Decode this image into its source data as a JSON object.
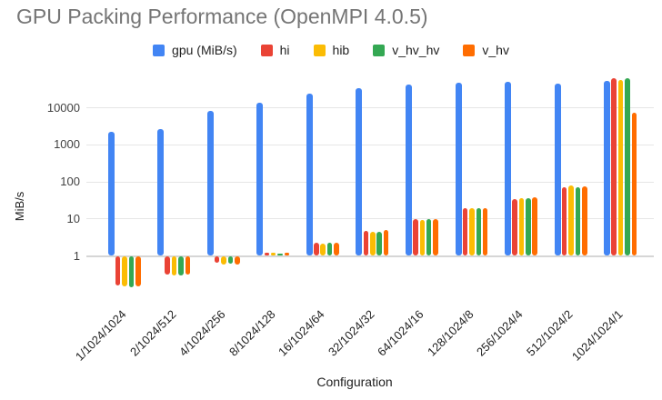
{
  "chart_data": {
    "type": "bar",
    "title": "GPU Packing Performance (OpenMPI 4.0.5)",
    "xlabel": "Configuration",
    "ylabel": "MiB/s",
    "y_scale": "log",
    "y_ticks": [
      1,
      10,
      100,
      1000,
      10000
    ],
    "ylim": [
      0.1,
      60000
    ],
    "grid": true,
    "legend_position": "top",
    "title_color": "#757575",
    "categories": [
      "1/1024/1024",
      "2/1024/512",
      "4/1024/256",
      "8/1024/128",
      "16/1024/64",
      "32/1024/32",
      "64/1024/16",
      "128/1024/8",
      "256/1024/4",
      "512/1024/2",
      "1024/1024/1"
    ],
    "series": [
      {
        "name": "gpu (MiB/s)",
        "color": "#4285F4",
        "values": [
          2200,
          2700,
          8200,
          13500,
          24000,
          34000,
          42000,
          47000,
          50000,
          46000,
          55000
        ]
      },
      {
        "name": "hi",
        "color": "#EA4335",
        "values": [
          0.16,
          0.31,
          0.65,
          1.2,
          2.3,
          4.8,
          10,
          19,
          35,
          70,
          62000
        ]
      },
      {
        "name": "hib",
        "color": "#FBBC04",
        "values": [
          0.15,
          0.3,
          0.6,
          1.2,
          2.2,
          4.5,
          9.5,
          20,
          37,
          80,
          58000
        ]
      },
      {
        "name": "v_hv_hv",
        "color": "#34A853",
        "values": [
          0.14,
          0.3,
          0.62,
          1.15,
          2.3,
          4.5,
          9.8,
          19,
          37,
          72,
          62000
        ]
      },
      {
        "name": "v_hv",
        "color": "#FF6D01",
        "values": [
          0.15,
          0.31,
          0.6,
          1.2,
          2.3,
          4.9,
          10,
          20,
          38,
          76,
          7300
        ]
      }
    ]
  }
}
